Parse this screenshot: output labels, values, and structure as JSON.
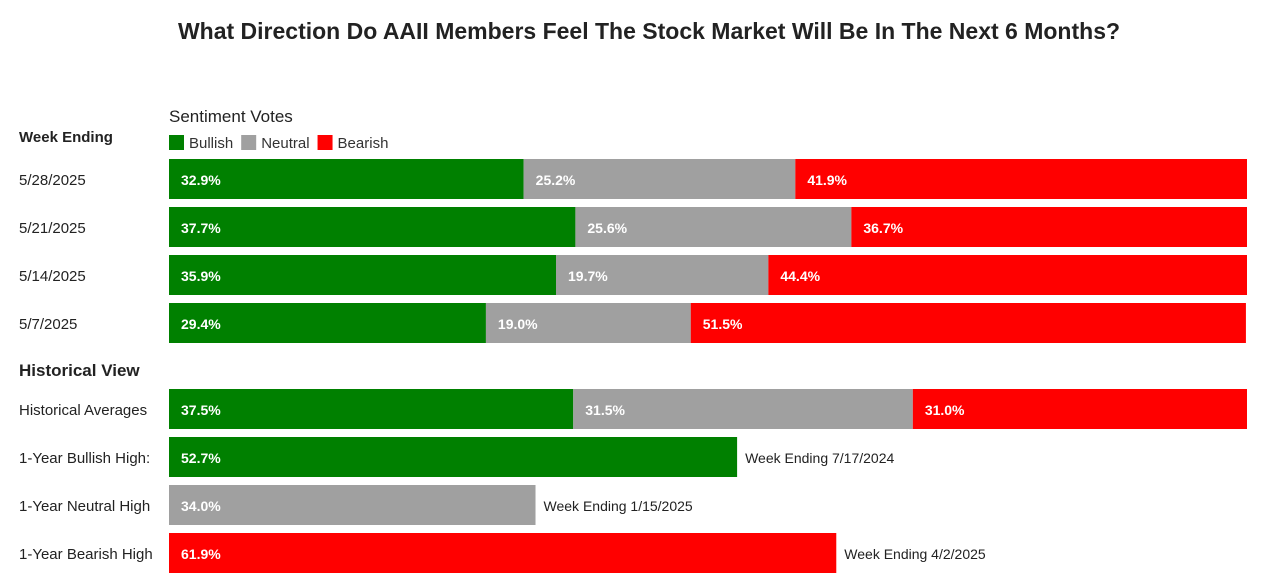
{
  "chart_data": {
    "type": "bar",
    "orientation": "horizontal",
    "stacked": true,
    "title": "What Direction Do AAII Members Feel The Stock Market Will Be In The Next 6 Months?",
    "subtitle": "Sentiment Votes",
    "week_header": "Week Ending",
    "historical_header": "Historical View",
    "xlim": [
      0,
      100
    ],
    "grid": false,
    "legend_position": "top-left",
    "series": [
      {
        "name": "Bullish",
        "color": "#008000"
      },
      {
        "name": "Neutral",
        "color": "#A0A0A0"
      },
      {
        "name": "Bearish",
        "color": "#FF0000"
      }
    ],
    "weeks": [
      {
        "label": "5/28/2025",
        "values": [
          32.9,
          25.2,
          41.9
        ],
        "text": [
          "32.9%",
          "25.2%",
          "41.9%"
        ]
      },
      {
        "label": "5/21/2025",
        "values": [
          37.7,
          25.6,
          36.7
        ],
        "text": [
          "37.7%",
          "25.6%",
          "36.7%"
        ]
      },
      {
        "label": "5/14/2025",
        "values": [
          35.9,
          19.7,
          44.4
        ],
        "text": [
          "35.9%",
          "19.7%",
          "44.4%"
        ]
      },
      {
        "label": "5/7/2025",
        "values": [
          29.4,
          19.0,
          51.5
        ],
        "text": [
          "29.4%",
          "19.0%",
          "51.5%"
        ]
      }
    ],
    "historical": [
      {
        "label": "Historical Averages",
        "values": [
          37.5,
          31.5,
          31.0
        ],
        "text": [
          "37.5%",
          "31.5%",
          "31.0%"
        ],
        "note": ""
      },
      {
        "label": "1-Year Bullish High:",
        "series": "Bullish",
        "value": 52.7,
        "text": "52.7%",
        "note": "Week Ending 7/17/2024"
      },
      {
        "label": "1-Year Neutral High",
        "series": "Neutral",
        "value": 34.0,
        "text": "34.0%",
        "note": "Week Ending 1/15/2025"
      },
      {
        "label": "1-Year Bearish High",
        "series": "Bearish",
        "value": 61.9,
        "text": "61.9%",
        "note": "Week Ending 4/2/2025"
      }
    ]
  }
}
